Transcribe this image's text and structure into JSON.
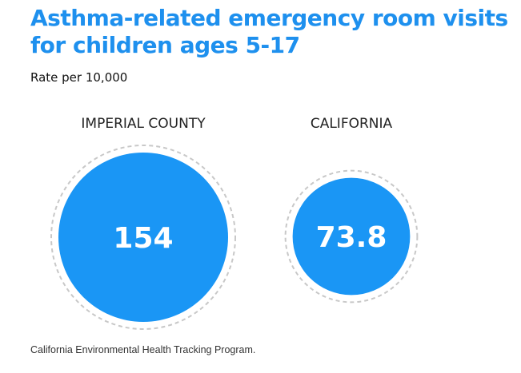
{
  "title": "Asthma-related emergency room visits for children ages 5-17",
  "subtitle": "Rate per 10,000",
  "source": "California Environmental Health Tracking Program.",
  "colors": {
    "accent": "#1e90ee",
    "circle": "#1a96f5",
    "ring": "#c8c8c8",
    "label": "#222222",
    "value": "#ffffff"
  },
  "chart_data": {
    "type": "bubble",
    "title": "Asthma-related emergency room visits for children ages 5-17",
    "unit": "Rate per 10,000",
    "categories": [
      "IMPERIAL COUNTY",
      "CALIFORNIA"
    ],
    "values": [
      154,
      73.8
    ],
    "value_labels": [
      "154",
      "73.8"
    ]
  }
}
